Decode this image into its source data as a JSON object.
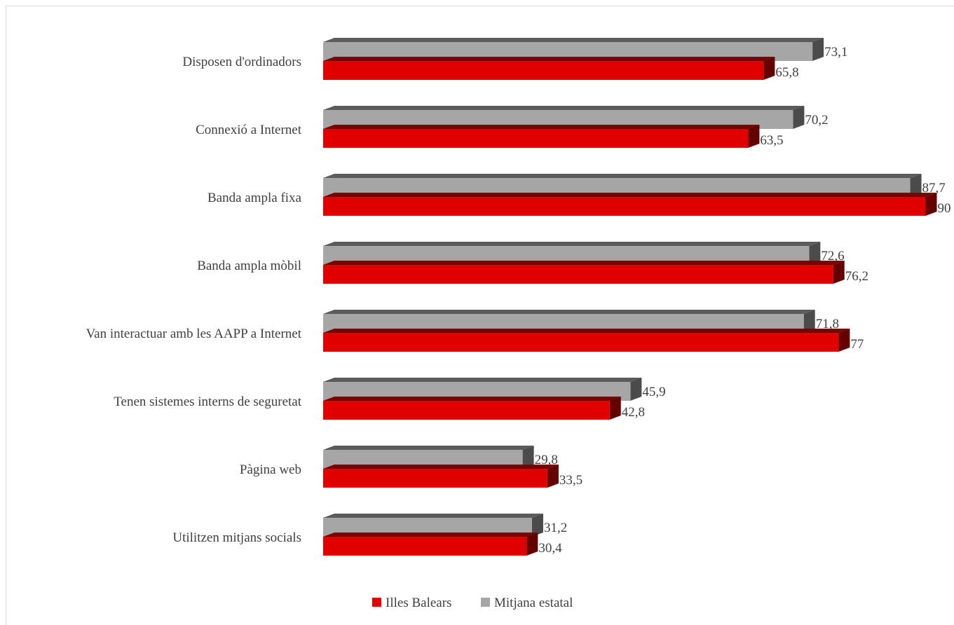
{
  "chart_data": {
    "type": "bar",
    "orientation": "horizontal",
    "style": "3d",
    "categories": [
      "Disposen d'ordinadors",
      "Connexió a Internet",
      "Banda ampla fixa",
      "Banda ampla mòbil",
      "Van interactuar amb les AAPP a Internet",
      "Tenen sistemes interns de seguretat",
      "Pàgina web",
      "Utilitzen mitjans socials"
    ],
    "series": [
      {
        "name": "Mitjana estatal",
        "color": "#a6a6a6",
        "values": [
          73.1,
          70.2,
          87.7,
          72.6,
          71.8,
          45.9,
          29.8,
          31.2
        ],
        "labels": [
          "73,1",
          "70,2",
          "87,7",
          "72,6",
          "71,8",
          "45,9",
          "29,8",
          "31,2"
        ]
      },
      {
        "name": "Illes Balears",
        "color": "#e00000",
        "values": [
          65.8,
          63.5,
          90,
          76.2,
          77,
          42.8,
          33.5,
          30.4
        ],
        "labels": [
          "65,8",
          "63,5",
          "90",
          "76,2",
          "77",
          "42,8",
          "33,5",
          "30,4"
        ]
      }
    ],
    "legend": {
      "position": "bottom",
      "entries": [
        {
          "label": "Illes Balears",
          "color": "#e00000"
        },
        {
          "label": "Mitjana estatal",
          "color": "#a6a6a6"
        }
      ]
    },
    "xlim": [
      0,
      90
    ],
    "grid": false,
    "title": "",
    "xlabel": "",
    "ylabel": ""
  }
}
